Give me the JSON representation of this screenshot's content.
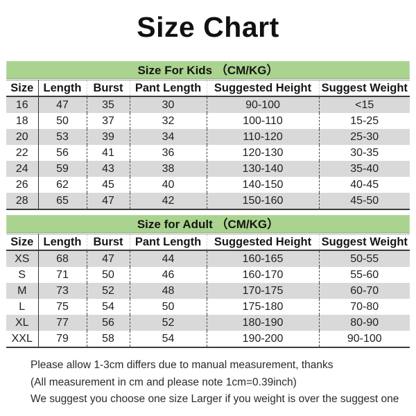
{
  "page": {
    "title": "Size Chart"
  },
  "colors": {
    "section_header_green": "#a9d38e",
    "stripe_gray": "#d9d9d9",
    "line_dark": "#3b3b3b"
  },
  "columns": [
    "Size",
    "Length",
    "Burst",
    "Pant Length",
    "Suggested Height",
    "Suggest Weight"
  ],
  "kids": {
    "section_title": "Size For Kids （CM/KG）",
    "rows": [
      [
        "16",
        "47",
        "35",
        "30",
        "90-100",
        "<15"
      ],
      [
        "18",
        "50",
        "37",
        "32",
        "100-110",
        "15-25"
      ],
      [
        "20",
        "53",
        "39",
        "34",
        "110-120",
        "25-30"
      ],
      [
        "22",
        "56",
        "41",
        "36",
        "120-130",
        "30-35"
      ],
      [
        "24",
        "59",
        "43",
        "38",
        "130-140",
        "35-40"
      ],
      [
        "26",
        "62",
        "45",
        "40",
        "140-150",
        "40-45"
      ],
      [
        "28",
        "65",
        "47",
        "42",
        "150-160",
        "45-50"
      ]
    ]
  },
  "adult": {
    "section_title": "Size for Adult （CM/KG）",
    "rows": [
      [
        "XS",
        "68",
        "47",
        "44",
        "160-165",
        "50-55"
      ],
      [
        "S",
        "71",
        "50",
        "46",
        "160-170",
        "55-60"
      ],
      [
        "M",
        "73",
        "52",
        "48",
        "170-175",
        "60-70"
      ],
      [
        "L",
        "75",
        "54",
        "50",
        "175-180",
        "70-80"
      ],
      [
        "XL",
        "77",
        "56",
        "52",
        "180-190",
        "80-90"
      ],
      [
        "XXL",
        "79",
        "58",
        "54",
        "190-200",
        "90-100"
      ]
    ]
  },
  "footer": {
    "lines": [
      "Please allow 1-3cm differs due to manual measurement, thanks",
      "(All measurement in cm and please note 1cm=0.39inch)",
      "We suggest you choose one size Larger if you weight is over the suggest one"
    ]
  }
}
